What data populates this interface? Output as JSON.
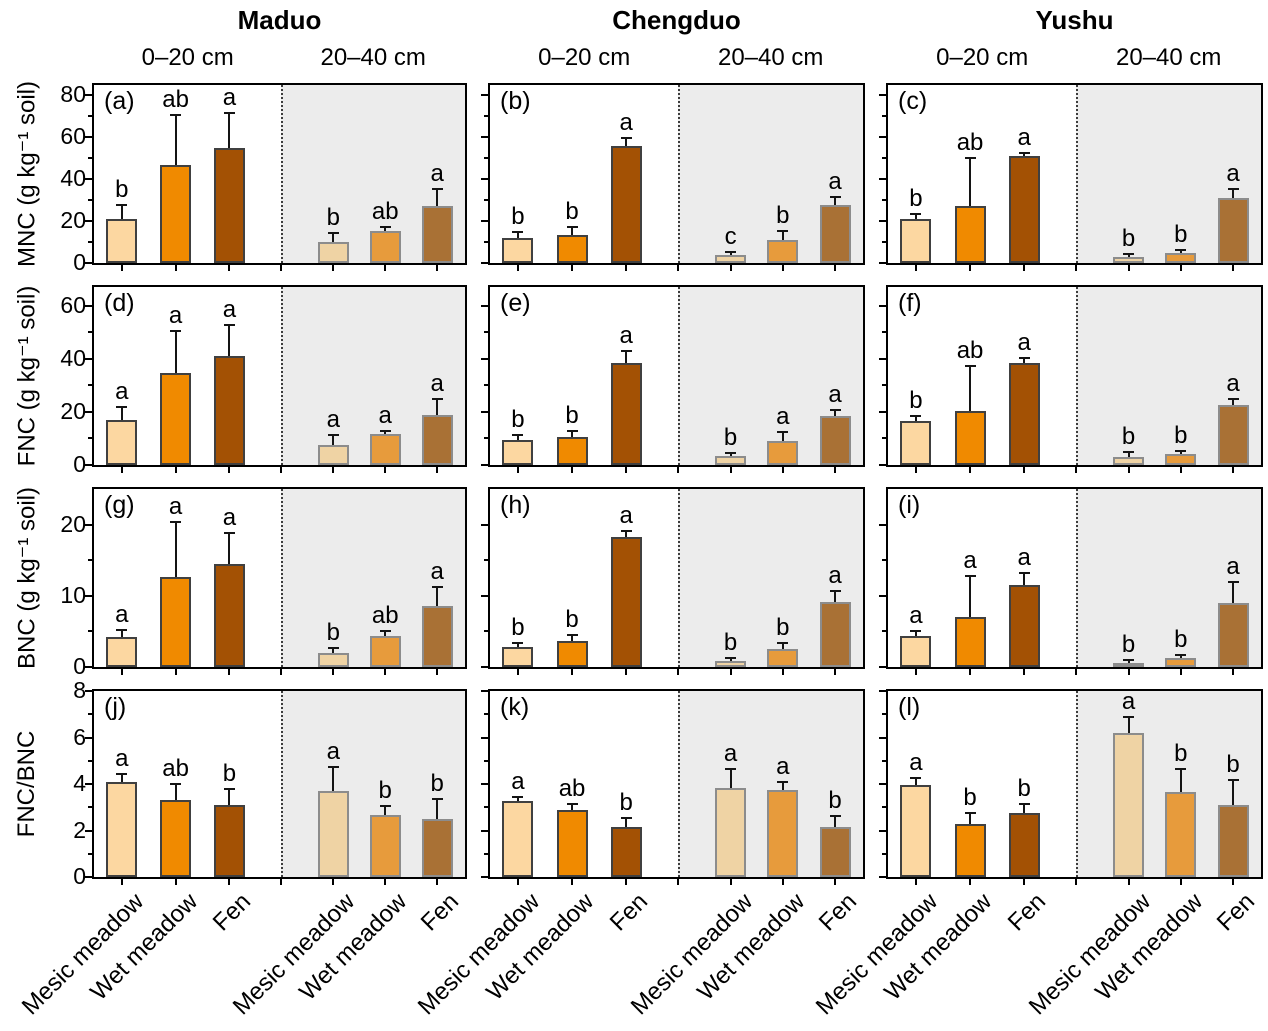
{
  "figure": {
    "sites": [
      "Maduo",
      "Chengduo",
      "Yushu"
    ],
    "depth_labels": [
      "0–20 cm",
      "20–40 cm"
    ],
    "categories": [
      "Mesic meadow",
      "Wet meadow",
      "Fen"
    ],
    "colors": {
      "bar_fill_0_20": [
        "#FCD7A1",
        "#F08A00",
        "#A35104"
      ],
      "bar_fill_20_40": [
        "#EFD3A4",
        "#E79B3C",
        "#A97135"
      ],
      "bar_stroke_0_20": "#404040",
      "bar_stroke_20_40": "#8C8C8C",
      "shade_20_40": "#ECECEC",
      "axis": "#000000"
    }
  },
  "chart_data": {
    "type": "bar",
    "note": "12 panels (4 measures x 3 sites); each panel: 3 vegetation types at 0-20 cm (white background) and 20-40 cm (gray background); error bars upward; significance letters above bars",
    "categories": [
      "Mesic meadow",
      "Wet meadow",
      "Fen"
    ],
    "rows": [
      {
        "measure": "MNC",
        "ylabel": "MNC (g kg⁻¹ soil)",
        "ylim": [
          0,
          85
        ],
        "yticks": [
          0,
          20,
          40,
          60,
          80
        ],
        "minor_step": 10,
        "panels": [
          {
            "tag": "(a)",
            "site": "Maduo",
            "groups": [
              {
                "depth": "0–20 cm",
                "values": [
                  21,
                  47,
                  55
                ],
                "errors": [
                  6,
                  23,
                  16
                ],
                "letters": [
                  "b",
                  "ab",
                  "a"
                ]
              },
              {
                "depth": "20–40 cm",
                "values": [
                  10,
                  15.5,
                  27
                ],
                "errors": [
                  4,
                  1,
                  8
                ],
                "letters": [
                  "b",
                  "ab",
                  "a"
                ]
              }
            ]
          },
          {
            "tag": "(b)",
            "site": "Chengduo",
            "groups": [
              {
                "depth": "0–20 cm",
                "values": [
                  12,
                  13.5,
                  56
                ],
                "errors": [
                  2.5,
                  3,
                  3
                ],
                "letters": [
                  "b",
                  "b",
                  "a"
                ]
              },
              {
                "depth": "20–40 cm",
                "values": [
                  4,
                  11,
                  27.5
                ],
                "errors": [
                  1,
                  4,
                  3.5
                ],
                "letters": [
                  "c",
                  "b",
                  "a"
                ]
              }
            ]
          },
          {
            "tag": "(c)",
            "site": "Yushu",
            "groups": [
              {
                "depth": "0–20 cm",
                "values": [
                  21,
                  27,
                  51
                ],
                "errors": [
                  2,
                  22.5,
                  1
                ],
                "letters": [
                  "b",
                  "ab",
                  "a"
                ]
              },
              {
                "depth": "20–40 cm",
                "values": [
                  3,
                  5,
                  31
                ],
                "errors": [
                  1,
                  0.5,
                  4
                ],
                "letters": [
                  "b",
                  "b",
                  "a"
                ]
              }
            ]
          }
        ]
      },
      {
        "measure": "FNC",
        "ylabel": "FNC (g kg⁻¹ soil)",
        "ylim": [
          0,
          67
        ],
        "yticks": [
          0,
          20,
          40,
          60
        ],
        "minor_step": 10,
        "panels": [
          {
            "tag": "(d)",
            "site": "Maduo",
            "groups": [
              {
                "depth": "0–20 cm",
                "values": [
                  17,
                  34.5,
                  41
                ],
                "errors": [
                  4.5,
                  15.5,
                  11.5
                ],
                "letters": [
                  "a",
                  "a",
                  "a"
                ]
              },
              {
                "depth": "20–40 cm",
                "values": [
                  7.5,
                  11.5,
                  19
                ],
                "errors": [
                  3.5,
                  1,
                  5.5
                ],
                "letters": [
                  "a",
                  "a",
                  "a"
                ]
              }
            ]
          },
          {
            "tag": "(e)",
            "site": "Chengduo",
            "groups": [
              {
                "depth": "0–20 cm",
                "values": [
                  9.5,
                  10.5,
                  38.5
                ],
                "errors": [
                  1.5,
                  2,
                  4
                ],
                "letters": [
                  "b",
                  "b",
                  "a"
                ]
              },
              {
                "depth": "20–40 cm",
                "values": [
                  3.5,
                  9,
                  18.5
                ],
                "errors": [
                  0.5,
                  3,
                  2
                ],
                "letters": [
                  "b",
                  "a",
                  "a"
                ]
              }
            ]
          },
          {
            "tag": "(f)",
            "site": "Yushu",
            "groups": [
              {
                "depth": "0–20 cm",
                "values": [
                  16.5,
                  20.5,
                  38.5
                ],
                "errors": [
                  1.5,
                  16.5,
                  1.5
                ],
                "letters": [
                  "b",
                  "ab",
                  "a"
                ]
              },
              {
                "depth": "20–40 cm",
                "values": [
                  3,
                  4,
                  22.5
                ],
                "errors": [
                  1.5,
                  1,
                  2
                ],
                "letters": [
                  "b",
                  "b",
                  "a"
                ]
              }
            ]
          }
        ]
      },
      {
        "measure": "BNC",
        "ylabel": "BNC (g kg⁻¹ soil)",
        "ylim": [
          0,
          25
        ],
        "yticks": [
          0,
          10,
          20
        ],
        "minor_step": 5,
        "panels": [
          {
            "tag": "(g)",
            "site": "Maduo",
            "groups": [
              {
                "depth": "0–20 cm",
                "values": [
                  4.2,
                  12.7,
                  14.4
                ],
                "errors": [
                  0.9,
                  7.5,
                  4.3
                ],
                "letters": [
                  "a",
                  "a",
                  "a"
                ]
              },
              {
                "depth": "20–40 cm",
                "values": [
                  2,
                  4.4,
                  8.6
                ],
                "errors": [
                  0.6,
                  0.5,
                  2.5
                ],
                "letters": [
                  "b",
                  "ab",
                  "a"
                ]
              }
            ]
          },
          {
            "tag": "(h)",
            "site": "Chengduo",
            "groups": [
              {
                "depth": "0–20 cm",
                "values": [
                  2.8,
                  3.6,
                  18.2
                ],
                "errors": [
                  0.4,
                  0.8,
                  0.8
                ],
                "letters": [
                  "b",
                  "b",
                  "a"
                ]
              },
              {
                "depth": "20–40 cm",
                "values": [
                  0.9,
                  2.5,
                  9.1
                ],
                "errors": [
                  0.2,
                  0.7,
                  1.5
                ],
                "letters": [
                  "b",
                  "b",
                  "a"
                ]
              }
            ]
          },
          {
            "tag": "(i)",
            "site": "Yushu",
            "groups": [
              {
                "depth": "0–20 cm",
                "values": [
                  4.4,
                  7,
                  11.5
                ],
                "errors": [
                  0.5,
                  5.6,
                  1.6
                ],
                "letters": [
                  "a",
                  "a",
                  "a"
                ]
              },
              {
                "depth": "20–40 cm",
                "values": [
                  0.5,
                  1.2,
                  9
                ],
                "errors": [
                  0.4,
                  0.3,
                  2.8
                ],
                "letters": [
                  "b",
                  "b",
                  "a"
                ]
              }
            ]
          }
        ]
      },
      {
        "measure": "FNC/BNC",
        "ylabel": "FNC/BNC",
        "ylim": [
          0,
          8
        ],
        "yticks": [
          0,
          2,
          4,
          6,
          8
        ],
        "minor_step": 1,
        "panels": [
          {
            "tag": "(j)",
            "site": "Maduo",
            "groups": [
              {
                "depth": "0–20 cm",
                "values": [
                  4.1,
                  3.3,
                  3.1
                ],
                "errors": [
                  0.3,
                  0.65,
                  0.65
                ],
                "letters": [
                  "a",
                  "ab",
                  "b"
                ]
              },
              {
                "depth": "20–40 cm",
                "values": [
                  3.7,
                  2.65,
                  2.5
                ],
                "errors": [
                  1,
                  0.35,
                  0.8
                ],
                "letters": [
                  "a",
                  "b",
                  "b"
                ]
              }
            ]
          },
          {
            "tag": "(k)",
            "site": "Chengduo",
            "groups": [
              {
                "depth": "0–20 cm",
                "values": [
                  3.25,
                  2.9,
                  2.15
                ],
                "errors": [
                  0.15,
                  0.2,
                  0.35
                ],
                "letters": [
                  "a",
                  "ab",
                  "b"
                ]
              },
              {
                "depth": "20–40 cm",
                "values": [
                  3.85,
                  3.75,
                  2.15
                ],
                "errors": [
                  0.75,
                  0.3,
                  0.45
                ],
                "letters": [
                  "a",
                  "a",
                  "b"
                ]
              }
            ]
          },
          {
            "tag": "(l)",
            "site": "Yushu",
            "groups": [
              {
                "depth": "0–20 cm",
                "values": [
                  3.95,
                  2.3,
                  2.75
                ],
                "errors": [
                  0.25,
                  0.4,
                  0.35
                ],
                "letters": [
                  "a",
                  "b",
                  "b"
                ]
              },
              {
                "depth": "20–40 cm",
                "values": [
                  6.2,
                  3.65,
                  3.1
                ],
                "errors": [
                  0.65,
                  0.95,
                  1.05
                ],
                "letters": [
                  "a",
                  "b",
                  "b"
                ]
              }
            ]
          }
        ]
      }
    ]
  }
}
